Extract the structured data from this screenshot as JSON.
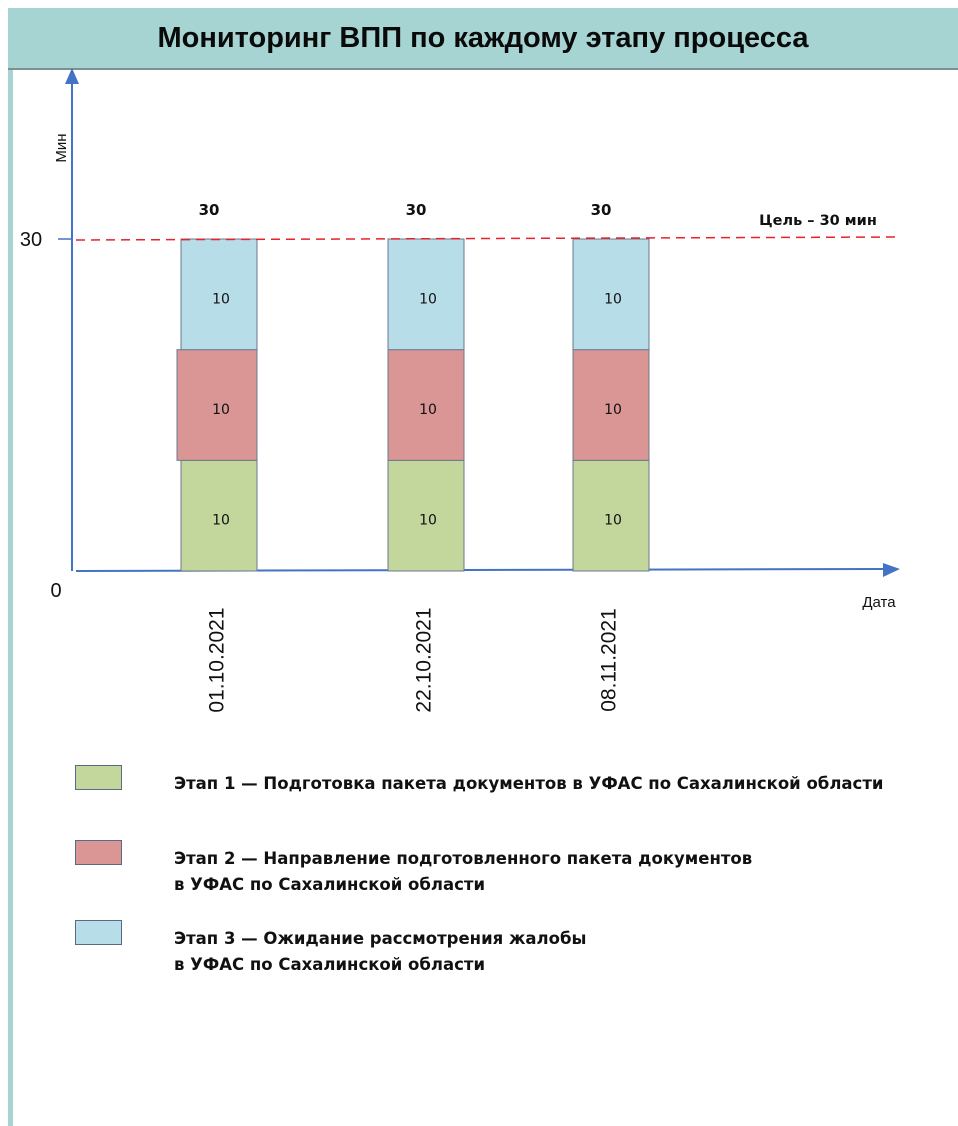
{
  "title": "Мониторинг ВПП по каждому этапу процесса",
  "chart_data": {
    "type": "bar",
    "stacked": true,
    "categories": [
      "01.10.2021",
      "22.10.2021",
      "08.11.2021"
    ],
    "series": [
      {
        "name": "Этап 1 — Подготовка пакета документов в УФАС по Сахалинской области",
        "values": [
          10,
          10,
          10
        ],
        "color": "#c3d69b"
      },
      {
        "name": "Этап 2 — Направление подготовленного пакета документов\nв УФАС по Сахалинской области",
        "values": [
          10,
          10,
          10
        ],
        "color": "#d99694"
      },
      {
        "name": "Этап 3 — Ожидание рассмотрения жалобы\nв УФАС по Сахалинской области",
        "values": [
          10,
          10,
          10
        ],
        "color": "#b7dde8"
      }
    ],
    "totals": [
      30,
      30,
      30
    ],
    "ylabel": "Мин",
    "xlabel": "Дата",
    "ylim": [
      0,
      30
    ],
    "yticks": [
      "0",
      "30"
    ],
    "target": {
      "value": 30,
      "label": "Цель – 30 мин",
      "color": "#e8212a"
    },
    "grid": false,
    "legend_position": "bottom"
  }
}
